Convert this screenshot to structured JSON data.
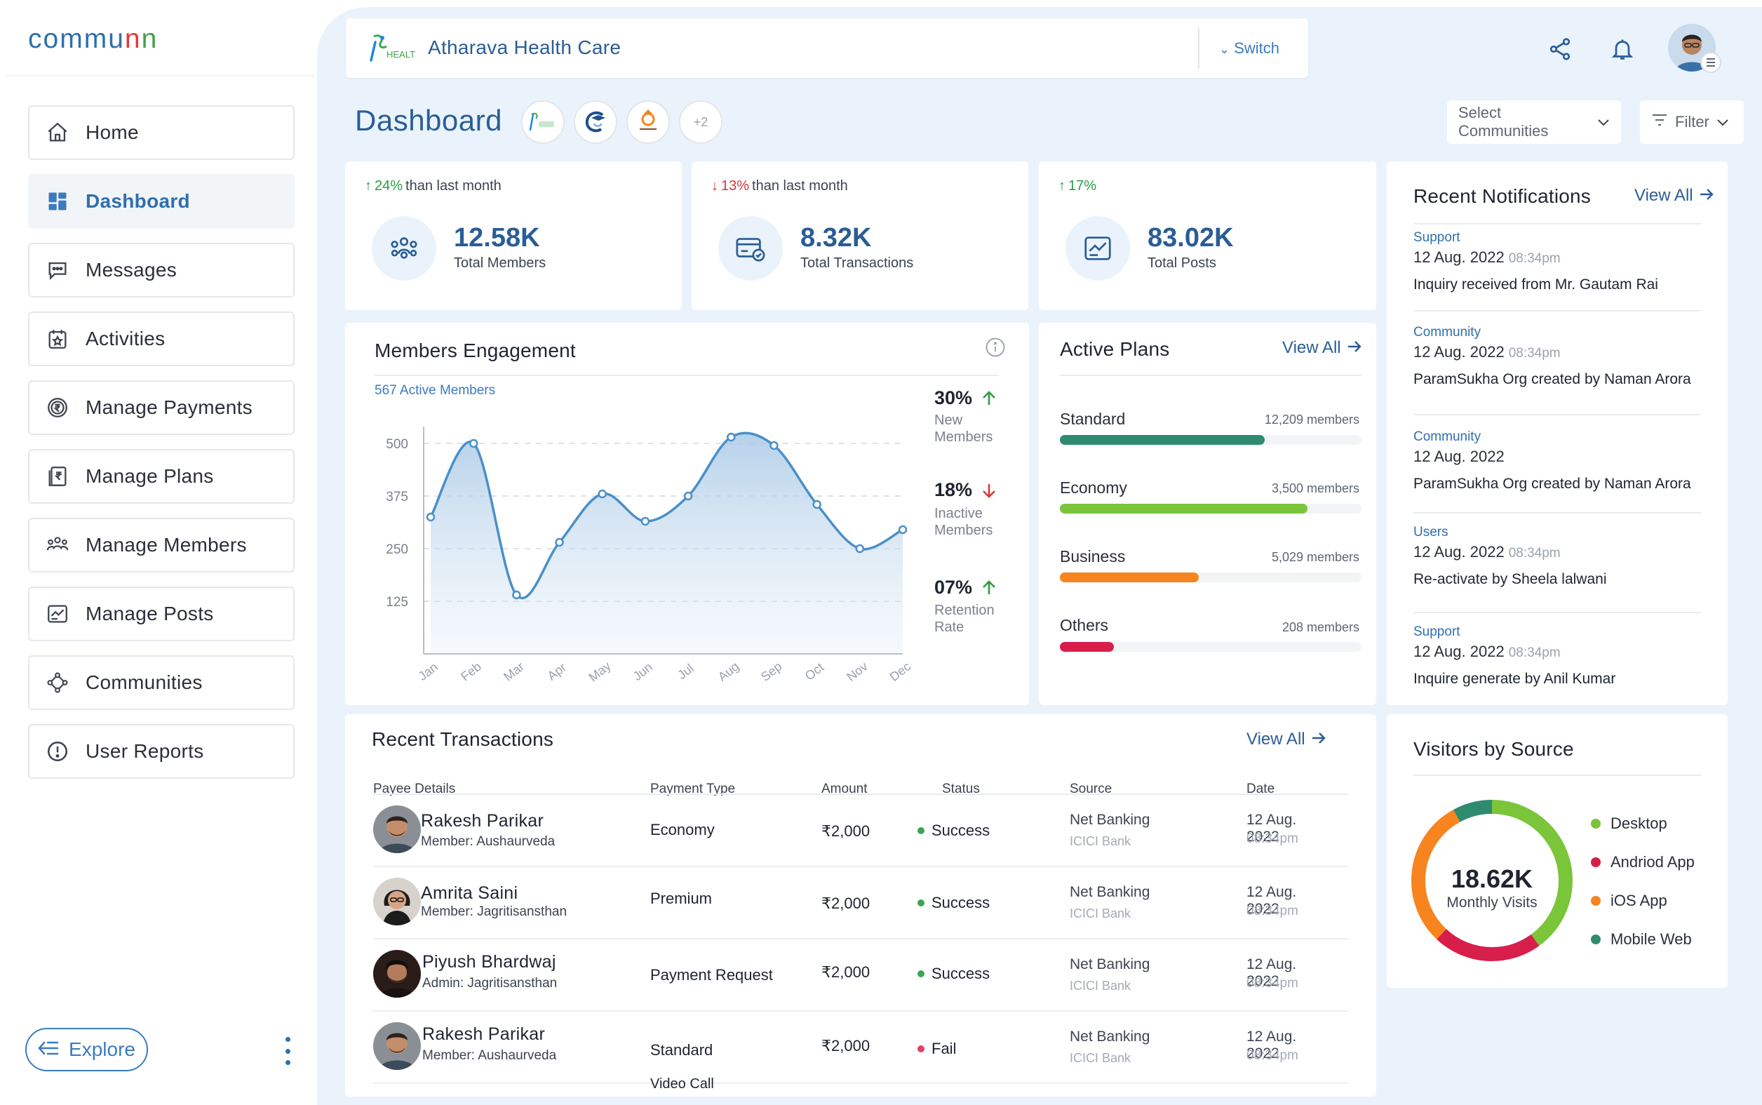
{
  "brand": {
    "name": "communn",
    "colors": [
      "#e53935",
      "#2f6fae",
      "#43a047",
      "#fb8c00",
      "#8e24aa",
      "#1e88e5",
      "#fdd835"
    ]
  },
  "nav": {
    "items": [
      {
        "label": "Home",
        "icon": "home-icon"
      },
      {
        "label": "Dashboard",
        "icon": "dashboard-icon",
        "active": true
      },
      {
        "label": "Messages",
        "icon": "messages-icon"
      },
      {
        "label": "Activities",
        "icon": "activities-icon"
      },
      {
        "label": "Manage Payments",
        "icon": "rupee-coin-icon"
      },
      {
        "label": "Manage Plans",
        "icon": "plans-icon"
      },
      {
        "label": "Manage Members",
        "icon": "members-icon"
      },
      {
        "label": "Manage Posts",
        "icon": "posts-icon"
      },
      {
        "label": "Communities",
        "icon": "communities-icon"
      },
      {
        "label": "User Reports",
        "icon": "report-icon"
      }
    ],
    "explore_label": "Explore"
  },
  "header": {
    "org_logo_text": "HEALTH CARE",
    "org_name": "Atharava Health Care",
    "switch_label": "Switch"
  },
  "dashboard": {
    "title": "Dashboard",
    "communities_more": "+2",
    "select_communities": "Select Communities",
    "filter": "Filter"
  },
  "stats": [
    {
      "change": "24%",
      "direction": "up",
      "suffix": " than last month",
      "value": "12.58K",
      "label": "Total Members",
      "icon": "members-icon"
    },
    {
      "change": "13%",
      "direction": "down",
      "suffix": " than last month",
      "value": "8.32K",
      "label": "Total Transactions",
      "icon": "transactions-icon"
    },
    {
      "change": "17%",
      "direction": "up",
      "suffix": "",
      "value": "83.02K",
      "label": "Total Posts",
      "icon": "posts-icon"
    }
  ],
  "engagement": {
    "title": "Members Engagement",
    "subtitle": "567 Active Members",
    "stats": [
      {
        "value": "30%",
        "direction": "up",
        "label": "New Members"
      },
      {
        "value": "18%",
        "direction": "down",
        "label": "Inactive Members"
      },
      {
        "value": "07%",
        "direction": "up",
        "label": "Retention Rate"
      }
    ]
  },
  "chart_data": {
    "type": "area",
    "title": "Members Engagement",
    "categories": [
      "Jan",
      "Feb",
      "Mar",
      "Apr",
      "May",
      "Jun",
      "Jul",
      "Aug",
      "Sep",
      "Oct",
      "Nov",
      "Dec"
    ],
    "x": [
      0.0,
      1.0,
      2.0,
      3.0,
      4.0,
      5.0,
      6.0,
      7.0,
      8.0,
      9.0,
      10.0,
      11.0
    ],
    "values": [
      325,
      500,
      140,
      265,
      380,
      315,
      375,
      515,
      495,
      355,
      250,
      295
    ],
    "ylim": [
      0,
      540
    ],
    "yticks": [
      125,
      250,
      375,
      500
    ],
    "grid": true,
    "color": "#4a90c8"
  },
  "plans": {
    "title": "Active Plans",
    "view_all": "View All",
    "items": [
      {
        "name": "Standard",
        "count": "12,209 members",
        "fraction": 0.68,
        "color": "#2e8b6e"
      },
      {
        "name": "Economy",
        "count": "3,500 members",
        "fraction": 0.82,
        "color": "#7ac53a"
      },
      {
        "name": "Business",
        "count": "5,029 members",
        "fraction": 0.46,
        "color": "#f7841e"
      },
      {
        "name": "Others",
        "count": "208 members",
        "fraction": 0.18,
        "color": "#d81e4a"
      }
    ]
  },
  "notifications": {
    "title": "Recent Notifications",
    "view_all": "View All",
    "items": [
      {
        "category": "Support",
        "date": "12 Aug. 2022",
        "time": "08:34pm",
        "text": "Inquiry received from Mr. Gautam Rai"
      },
      {
        "category": "Community",
        "date": "12 Aug. 2022",
        "time": "08:34pm",
        "text": "ParamSukha Org created by Naman Arora"
      },
      {
        "category": "Community",
        "date": "12 Aug. 2022",
        "time": "",
        "text": "ParamSukha Org created by Naman Arora"
      },
      {
        "category": "Users",
        "date": "12 Aug. 2022",
        "time": "08:34pm",
        "text": "Re-activate by Sheela lalwani"
      },
      {
        "category": "Support",
        "date": "12 Aug. 2022",
        "time": "08:34pm",
        "text": "Inquire generate by Anil Kumar"
      }
    ]
  },
  "transactions": {
    "title": "Recent Transactions",
    "view_all": "View All",
    "headers": [
      "Payee Details",
      "Payment Type",
      "Amount",
      "Status",
      "Source",
      "Date"
    ],
    "rows": [
      {
        "name": "Rakesh Parikar",
        "member": "Member: Aushaurveda",
        "type": "Economy",
        "amount": "₹2,000",
        "status": "Success",
        "status_color": "#3aa655",
        "source": "Net Banking",
        "bank": "ICICI Bank",
        "date": "12 Aug. 2022",
        "time": "08:34pm"
      },
      {
        "name": "Amrita Saini",
        "member": "Member: Jagritisansthan",
        "type": "Premium",
        "amount": "₹2,000",
        "status": "Success",
        "status_color": "#3aa655",
        "source": "Net Banking",
        "bank": "ICICI Bank",
        "date": "12 Aug. 2022",
        "time": "08:34pm"
      },
      {
        "name": "Piyush Bhardwaj",
        "member": "Admin: Jagritisansthan",
        "type": "Payment Request",
        "amount": "₹2,000",
        "status": "Success",
        "status_color": "#3aa655",
        "source": "Net Banking",
        "bank": "ICICI Bank",
        "date": "12 Aug. 2022",
        "time": "08:34pm"
      },
      {
        "name": "Rakesh Parikar",
        "member": "Member: Aushaurveda",
        "type": "Standard",
        "amount": "₹2,000",
        "status": "Fail",
        "status_color": "#e0416a",
        "source": "Net Banking",
        "bank": "ICICI Bank",
        "date": "12 Aug. 2022",
        "time": "08:34pm"
      }
    ],
    "partial_row_type": "Video Call"
  },
  "visitors": {
    "title": "Visitors by Source",
    "total": "18.62K",
    "total_label": "Monthly Visits",
    "sources": [
      {
        "name": "Desktop",
        "color": "#7ac53a",
        "share": 0.4
      },
      {
        "name": "Andriod App",
        "color": "#d81e4a",
        "share": 0.22
      },
      {
        "name": "iOS App",
        "color": "#f7841e",
        "share": 0.3
      },
      {
        "name": "Mobile Web",
        "color": "#2e8b6e",
        "share": 0.08
      }
    ]
  }
}
